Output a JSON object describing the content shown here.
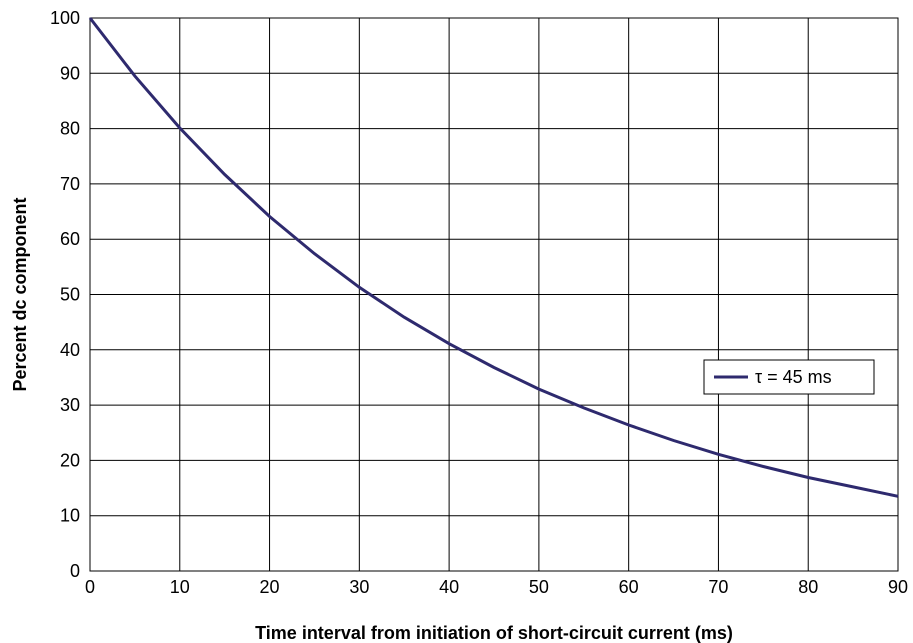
{
  "chart_data": {
    "type": "line",
    "xlabel": "Time interval from initiation of short-circuit current (ms)",
    "ylabel": "Percent dc component",
    "xlim": [
      0,
      90
    ],
    "ylim": [
      0,
      100
    ],
    "x_ticks": [
      0,
      10,
      20,
      30,
      40,
      50,
      60,
      70,
      80,
      90
    ],
    "y_ticks": [
      0,
      10,
      20,
      30,
      40,
      50,
      60,
      70,
      80,
      90,
      100
    ],
    "grid": true,
    "legend_position": "right",
    "series": [
      {
        "name": "τ = 45 ms",
        "color": "#2e2a6e",
        "x": [
          0,
          5,
          10,
          15,
          20,
          25,
          30,
          35,
          40,
          45,
          50,
          55,
          60,
          65,
          70,
          75,
          80,
          85,
          90
        ],
        "values": [
          100,
          89.5,
          80.1,
          71.7,
          64.1,
          57.4,
          51.3,
          45.9,
          41.1,
          36.8,
          32.9,
          29.5,
          26.4,
          23.6,
          21.1,
          18.9,
          16.9,
          15.2,
          13.5
        ]
      }
    ]
  }
}
